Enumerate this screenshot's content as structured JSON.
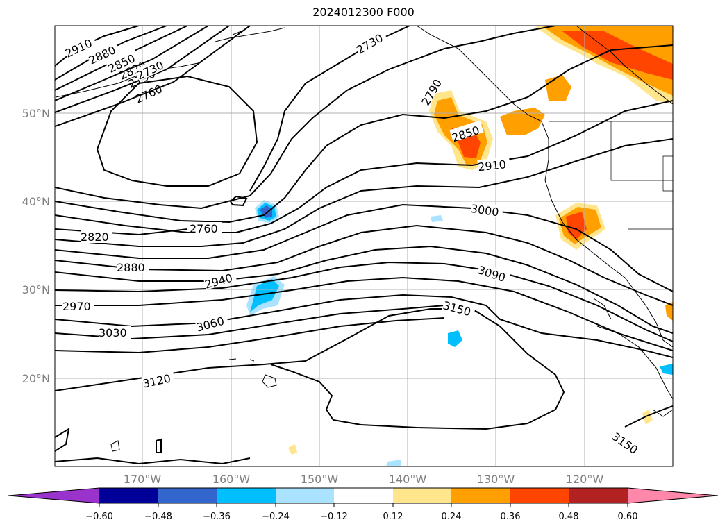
{
  "title": "2024012300 F000",
  "latitude_labels": [
    "50°N",
    "40°N",
    "30°N",
    "20°N"
  ],
  "longitude_labels": [
    "170°W",
    "160°W",
    "150°W",
    "140°W",
    "130°W",
    "120°W"
  ],
  "contour_labels": [
    "2910",
    "2880",
    "2850",
    "2820",
    "2790",
    "2760",
    "2730",
    "2730",
    "2790",
    "2850",
    "2910",
    "3000",
    "2760",
    "2820",
    "2880",
    "2940",
    "2970",
    "3030",
    "3060",
    "3090",
    "3150",
    "3120",
    "3150"
  ],
  "colorbar": {
    "ticks": [
      "−0.60",
      "−0.48",
      "−0.36",
      "−0.24",
      "−0.12",
      "0.12",
      "0.24",
      "0.36",
      "0.48",
      "0.60"
    ],
    "colors": [
      "#9933cc",
      "#000099",
      "#3366cc",
      "#00bfff",
      "#aae3ff",
      "#ffffff",
      "#ffe68c",
      "#ff9f00",
      "#ff4500",
      "#b22222",
      "#ff88aa"
    ]
  },
  "colors": {
    "contour": "#000000",
    "grid": "#b0b0b0"
  }
}
